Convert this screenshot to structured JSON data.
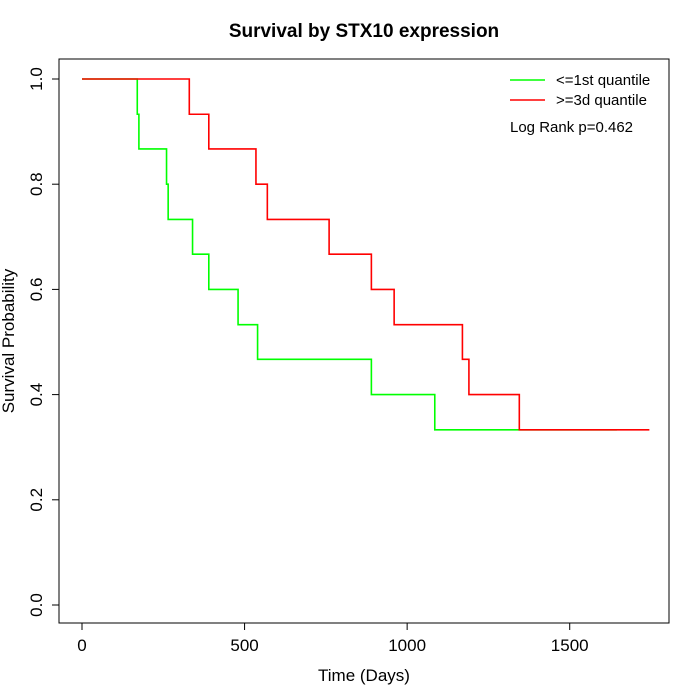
{
  "chart_data": {
    "type": "line",
    "step": true,
    "title": "Survival by STX10 expression",
    "xlabel": "Time (Days)",
    "ylabel": "Survival Probability",
    "xlim": [
      0,
      1750
    ],
    "ylim": [
      0,
      1
    ],
    "x_ticks": [
      0,
      500,
      1000,
      1500
    ],
    "y_ticks": [
      0.0,
      0.2,
      0.4,
      0.6,
      0.8,
      1.0
    ],
    "x_tick_labels": [
      "0",
      "500",
      "1000",
      "1500"
    ],
    "y_tick_labels": [
      "0.0",
      "0.2",
      "0.4",
      "0.6",
      "0.8",
      "1.0"
    ],
    "grid": false,
    "legend_position": "top-right",
    "annotation": "Log Rank p=0.462",
    "series": [
      {
        "name": "<=1st quantile",
        "color": "#00ff00",
        "x": [
          0,
          170,
          175,
          180,
          260,
          265,
          340,
          390,
          480,
          540,
          890,
          1085,
          1645
        ],
        "y": [
          1.0,
          0.933,
          0.867,
          0.867,
          0.8,
          0.733,
          0.667,
          0.6,
          0.533,
          0.467,
          0.4,
          0.333,
          0.333
        ]
      },
      {
        "name": ">=3d quantile",
        "color": "#ff0000",
        "x": [
          0,
          330,
          390,
          535,
          570,
          760,
          890,
          960,
          1170,
          1190,
          1345,
          1745
        ],
        "y": [
          1.0,
          0.933,
          0.867,
          0.8,
          0.733,
          0.667,
          0.6,
          0.533,
          0.467,
          0.4,
          0.333,
          0.333
        ]
      }
    ]
  }
}
